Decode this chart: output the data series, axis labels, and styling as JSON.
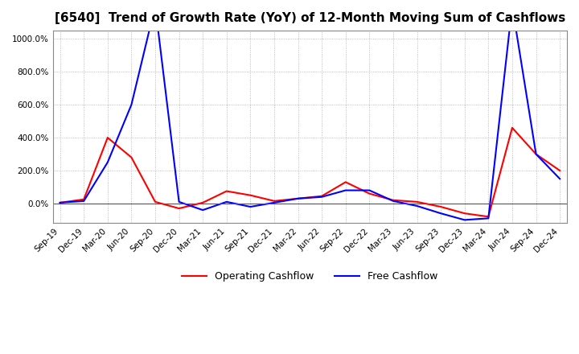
{
  "title": "[6540]  Trend of Growth Rate (YoY) of 12-Month Moving Sum of Cashflows",
  "title_fontsize": 11,
  "ylim": [
    -120,
    1050
  ],
  "yticks": [
    0,
    200,
    400,
    600,
    800,
    1000
  ],
  "background_color": "#ffffff",
  "grid_color": "#aaaaaa",
  "operating_color": "#ff0000",
  "free_color": "#0000ff",
  "legend_labels": [
    "Operating Cashflow",
    "Free Cashflow"
  ],
  "x_labels": [
    "Sep-19",
    "Dec-19",
    "Mar-20",
    "Jun-20",
    "Sep-20",
    "Dec-20",
    "Mar-21",
    "Jun-21",
    "Sep-21",
    "Dec-21",
    "Mar-22",
    "Jun-22",
    "Sep-22",
    "Dec-22",
    "Mar-23",
    "Jun-23",
    "Sep-23",
    "Dec-23",
    "Mar-24",
    "Jun-24",
    "Sep-24",
    "Dec-24"
  ],
  "operating_cashflow": [
    5,
    25,
    400,
    280,
    10,
    -30,
    5,
    75,
    50,
    15,
    30,
    45,
    130,
    60,
    20,
    10,
    -20,
    -60,
    -80,
    460,
    300,
    200
  ],
  "free_cashflow": [
    5,
    15,
    250,
    600,
    1200,
    10,
    -40,
    10,
    -20,
    5,
    30,
    40,
    80,
    80,
    15,
    -15,
    -60,
    -100,
    -90,
    1200,
    300,
    150
  ]
}
